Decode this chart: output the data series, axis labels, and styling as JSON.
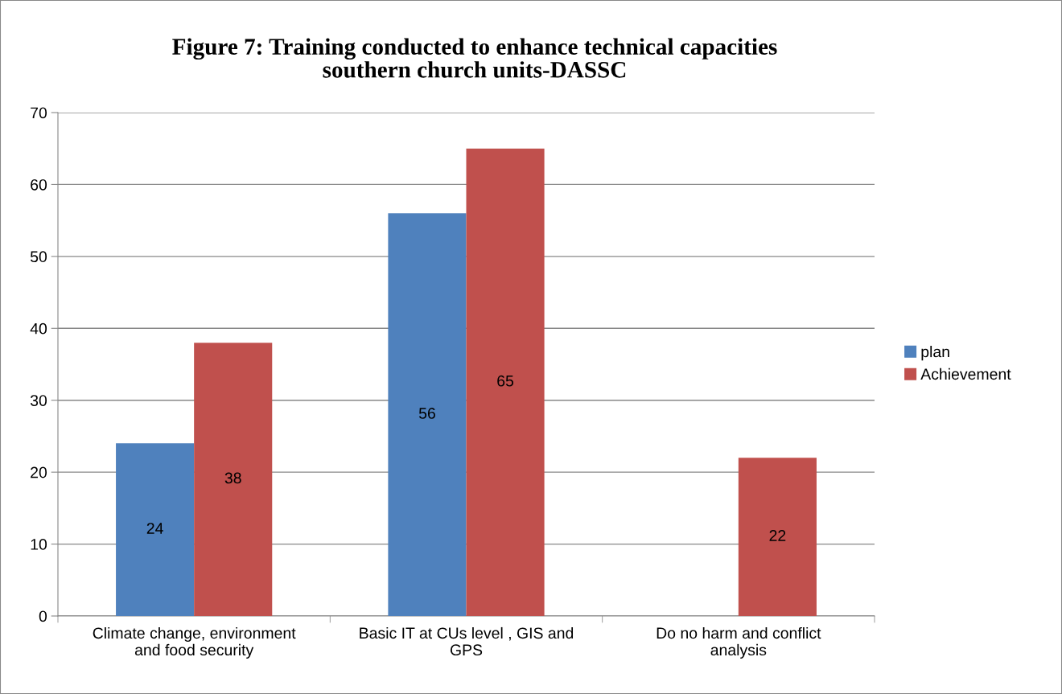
{
  "chart_data": {
    "type": "bar",
    "title": "Figure 7: Training conducted to enhance technical capacities\nsouthern church units-DASSC",
    "categories": [
      "Climate change, environment\nand food security",
      "Basic IT at CUs level , GIS and\nGPS",
      "Do no harm and conflict\nanalysis"
    ],
    "series": [
      {
        "name": "plan",
        "color": "#4f81bd",
        "values": [
          24,
          56,
          null
        ]
      },
      {
        "name": "Achievement",
        "color": "#c0504d",
        "values": [
          38,
          65,
          22
        ]
      }
    ],
    "ylim": [
      0,
      70
    ],
    "yticks": [
      0,
      10,
      20,
      30,
      40,
      50,
      60,
      70
    ],
    "grid": "y",
    "legend": "right",
    "data_labels": true
  }
}
